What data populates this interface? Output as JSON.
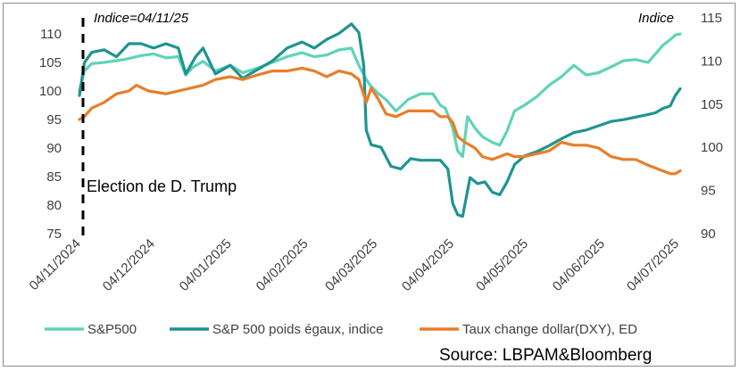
{
  "chart_data": {
    "type": "line",
    "annotation_top": "Indice=04/11/25",
    "right_axis_title": "Indice",
    "event_label": "Election de D. Trump",
    "source": "Source: LBPAM&Bloomberg",
    "left_axis": {
      "ylim": [
        75,
        110
      ],
      "ticks": [
        75,
        80,
        85,
        90,
        95,
        100,
        105,
        110
      ]
    },
    "right_axis": {
      "ylim": [
        90,
        115
      ],
      "ticks": [
        90,
        95,
        100,
        105,
        110,
        115
      ]
    },
    "x_range": [
      0,
      243
    ],
    "x_ticks": [
      {
        "label": "04/11/2024",
        "x": 0
      },
      {
        "label": "04/12/2024",
        "x": 30
      },
      {
        "label": "04/01/2025",
        "x": 61
      },
      {
        "label": "04/02/2025",
        "x": 92
      },
      {
        "label": "04/03/2025",
        "x": 120
      },
      {
        "label": "04/04/2025",
        "x": 151
      },
      {
        "label": "04/05/2025",
        "x": 181
      },
      {
        "label": "04/06/2025",
        "x": 212
      },
      {
        "label": "04/07/2025",
        "x": 242
      }
    ],
    "series": [
      {
        "name": "S&P500",
        "color": "#5fd3b8",
        "axis": "left",
        "points": [
          [
            0,
            100
          ],
          [
            2,
            103.5
          ],
          [
            5,
            104.8
          ],
          [
            10,
            105
          ],
          [
            18,
            105.5
          ],
          [
            25,
            106.2
          ],
          [
            30,
            106.5
          ],
          [
            35,
            105.8
          ],
          [
            40,
            106
          ],
          [
            43,
            102.8
          ],
          [
            46,
            104.2
          ],
          [
            50,
            105.2
          ],
          [
            55,
            103.5
          ],
          [
            61,
            104.5
          ],
          [
            66,
            103.2
          ],
          [
            72,
            104
          ],
          [
            78,
            105
          ],
          [
            84,
            106
          ],
          [
            90,
            106.7
          ],
          [
            95,
            106
          ],
          [
            100,
            106.3
          ],
          [
            105,
            107.2
          ],
          [
            110,
            107.5
          ],
          [
            113,
            104.5
          ],
          [
            116,
            102
          ],
          [
            118,
            100.8
          ],
          [
            121,
            99.5
          ],
          [
            124,
            98.5
          ],
          [
            128,
            96.5
          ],
          [
            133,
            98.5
          ],
          [
            138,
            99.5
          ],
          [
            143,
            99.5
          ],
          [
            146,
            97.5
          ],
          [
            148,
            97
          ],
          [
            151,
            93.5
          ],
          [
            153,
            89.5
          ],
          [
            155,
            88.5
          ],
          [
            157,
            95.5
          ],
          [
            160,
            93.5
          ],
          [
            163,
            92
          ],
          [
            167,
            91
          ],
          [
            170,
            90.5
          ],
          [
            173,
            93
          ],
          [
            176,
            96.5
          ],
          [
            180,
            97.5
          ],
          [
            185,
            99
          ],
          [
            190,
            101
          ],
          [
            195,
            102.5
          ],
          [
            200,
            104.5
          ],
          [
            205,
            102.8
          ],
          [
            210,
            103.2
          ],
          [
            215,
            104.2
          ],
          [
            220,
            105.3
          ],
          [
            225,
            105.5
          ],
          [
            230,
            105
          ],
          [
            233,
            106.5
          ],
          [
            236,
            108
          ],
          [
            239,
            109
          ],
          [
            241,
            109.8
          ],
          [
            243,
            110
          ]
        ]
      },
      {
        "name": "S&P 500  poids égaux, indice",
        "color": "#1f948f",
        "axis": "right",
        "points": [
          [
            0,
            106
          ],
          [
            2,
            109.8
          ],
          [
            5,
            111
          ],
          [
            10,
            111.3
          ],
          [
            15,
            110.5
          ],
          [
            20,
            112
          ],
          [
            25,
            112
          ],
          [
            30,
            111.5
          ],
          [
            35,
            112
          ],
          [
            40,
            111.5
          ],
          [
            43,
            108.5
          ],
          [
            47,
            110.5
          ],
          [
            50,
            111.5
          ],
          [
            55,
            108.5
          ],
          [
            61,
            109.5
          ],
          [
            66,
            108
          ],
          [
            72,
            109
          ],
          [
            78,
            110
          ],
          [
            84,
            111.5
          ],
          [
            90,
            112.2
          ],
          [
            95,
            111.5
          ],
          [
            100,
            112.5
          ],
          [
            105,
            113.2
          ],
          [
            110,
            114.3
          ],
          [
            113,
            113.3
          ],
          [
            115,
            109.5
          ],
          [
            116,
            102
          ],
          [
            118,
            100.3
          ],
          [
            122,
            100
          ],
          [
            126,
            97.8
          ],
          [
            130,
            97.5
          ],
          [
            134,
            98.7
          ],
          [
            138,
            98.5
          ],
          [
            143,
            98.5
          ],
          [
            146,
            98.5
          ],
          [
            149,
            97.5
          ],
          [
            151,
            93.5
          ],
          [
            153,
            92.2
          ],
          [
            155,
            92
          ],
          [
            158,
            96.5
          ],
          [
            161,
            95.8
          ],
          [
            164,
            96
          ],
          [
            167,
            94.8
          ],
          [
            170,
            94.5
          ],
          [
            173,
            96
          ],
          [
            176,
            98
          ],
          [
            180,
            99
          ],
          [
            185,
            99.5
          ],
          [
            190,
            100.2
          ],
          [
            195,
            101
          ],
          [
            200,
            101.7
          ],
          [
            205,
            102
          ],
          [
            210,
            102.5
          ],
          [
            215,
            103
          ],
          [
            220,
            103.2
          ],
          [
            225,
            103.5
          ],
          [
            230,
            103.8
          ],
          [
            233,
            104
          ],
          [
            236,
            104.5
          ],
          [
            239,
            104.8
          ],
          [
            241,
            106
          ],
          [
            243,
            106.8
          ]
        ]
      },
      {
        "name": "Taux change dollar(DXY), ED",
        "color": "#e97d2a",
        "axis": "left",
        "points": [
          [
            0,
            95
          ],
          [
            2,
            95.5
          ],
          [
            5,
            97
          ],
          [
            10,
            98
          ],
          [
            15,
            99.5
          ],
          [
            20,
            100
          ],
          [
            23,
            101
          ],
          [
            28,
            100
          ],
          [
            35,
            99.5
          ],
          [
            40,
            100
          ],
          [
            45,
            100.5
          ],
          [
            50,
            101
          ],
          [
            55,
            102
          ],
          [
            61,
            102.5
          ],
          [
            66,
            102
          ],
          [
            72,
            102.8
          ],
          [
            78,
            103.5
          ],
          [
            84,
            103.5
          ],
          [
            90,
            104
          ],
          [
            95,
            103.5
          ],
          [
            100,
            102.5
          ],
          [
            105,
            103.5
          ],
          [
            110,
            103
          ],
          [
            113,
            102
          ],
          [
            116,
            98
          ],
          [
            118,
            100.5
          ],
          [
            121,
            98.5
          ],
          [
            124,
            96
          ],
          [
            128,
            95.5
          ],
          [
            133,
            96.5
          ],
          [
            138,
            96.5
          ],
          [
            143,
            96.5
          ],
          [
            146,
            95.5
          ],
          [
            149,
            95.5
          ],
          [
            151,
            94.5
          ],
          [
            153,
            92
          ],
          [
            156,
            91
          ],
          [
            160,
            90
          ],
          [
            163,
            88.5
          ],
          [
            167,
            88
          ],
          [
            170,
            88.5
          ],
          [
            173,
            89
          ],
          [
            176,
            88.5
          ],
          [
            180,
            88.5
          ],
          [
            185,
            89
          ],
          [
            190,
            89.5
          ],
          [
            195,
            91
          ],
          [
            200,
            90.5
          ],
          [
            205,
            90.5
          ],
          [
            210,
            90
          ],
          [
            215,
            88.5
          ],
          [
            220,
            88
          ],
          [
            225,
            88
          ],
          [
            230,
            87
          ],
          [
            233,
            86.5
          ],
          [
            236,
            86
          ],
          [
            239,
            85.5
          ],
          [
            241,
            85.5
          ],
          [
            243,
            86
          ]
        ]
      }
    ]
  }
}
